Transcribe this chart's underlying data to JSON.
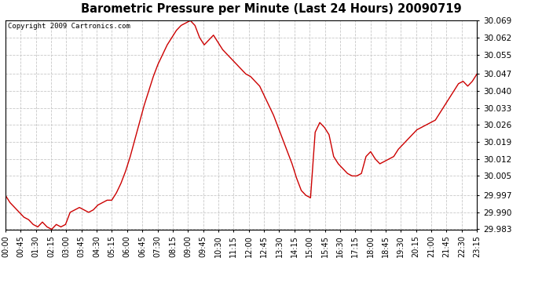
{
  "title": "Barometric Pressure per Minute (Last 24 Hours) 20090719",
  "copyright": "Copyright 2009 Cartronics.com",
  "line_color": "#cc0000",
  "bg_color": "#ffffff",
  "grid_color": "#c8c8c8",
  "ylim": [
    29.983,
    30.069
  ],
  "yticks": [
    29.983,
    29.99,
    29.997,
    30.005,
    30.012,
    30.019,
    30.026,
    30.033,
    30.04,
    30.047,
    30.055,
    30.062,
    30.069
  ],
  "xtick_labels": [
    "00:00",
    "00:45",
    "01:30",
    "02:15",
    "03:00",
    "03:45",
    "04:30",
    "05:15",
    "06:00",
    "06:45",
    "07:30",
    "08:15",
    "09:00",
    "09:45",
    "10:30",
    "11:15",
    "12:00",
    "12:45",
    "13:30",
    "14:15",
    "15:00",
    "15:45",
    "16:30",
    "17:15",
    "18:00",
    "18:45",
    "19:30",
    "20:15",
    "21:00",
    "21:45",
    "22:30",
    "23:15"
  ],
  "pressure_data": [
    29.997,
    29.994,
    29.992,
    29.99,
    29.988,
    29.987,
    29.985,
    29.984,
    29.986,
    29.984,
    29.983,
    29.985,
    29.984,
    29.985,
    29.99,
    29.991,
    29.992,
    29.991,
    29.99,
    29.991,
    29.993,
    29.994,
    29.995,
    29.995,
    29.998,
    30.002,
    30.007,
    30.013,
    30.02,
    30.027,
    30.034,
    30.04,
    30.046,
    30.051,
    30.055,
    30.059,
    30.062,
    30.065,
    30.067,
    30.068,
    30.069,
    30.067,
    30.062,
    30.059,
    30.061,
    30.063,
    30.06,
    30.057,
    30.055,
    30.053,
    30.051,
    30.049,
    30.047,
    30.046,
    30.044,
    30.042,
    30.038,
    30.034,
    30.03,
    30.025,
    30.02,
    30.015,
    30.01,
    30.004,
    29.999,
    29.997,
    29.996,
    30.023,
    30.027,
    30.025,
    30.022,
    30.013,
    30.01,
    30.008,
    30.006,
    30.005,
    30.005,
    30.006,
    30.013,
    30.015,
    30.012,
    30.01,
    30.011,
    30.012,
    30.013,
    30.016,
    30.018,
    30.02,
    30.022,
    30.024,
    30.025,
    30.026,
    30.027,
    30.028,
    30.031,
    30.034,
    30.037,
    30.04,
    30.043,
    30.044,
    30.042,
    30.044,
    30.047
  ]
}
